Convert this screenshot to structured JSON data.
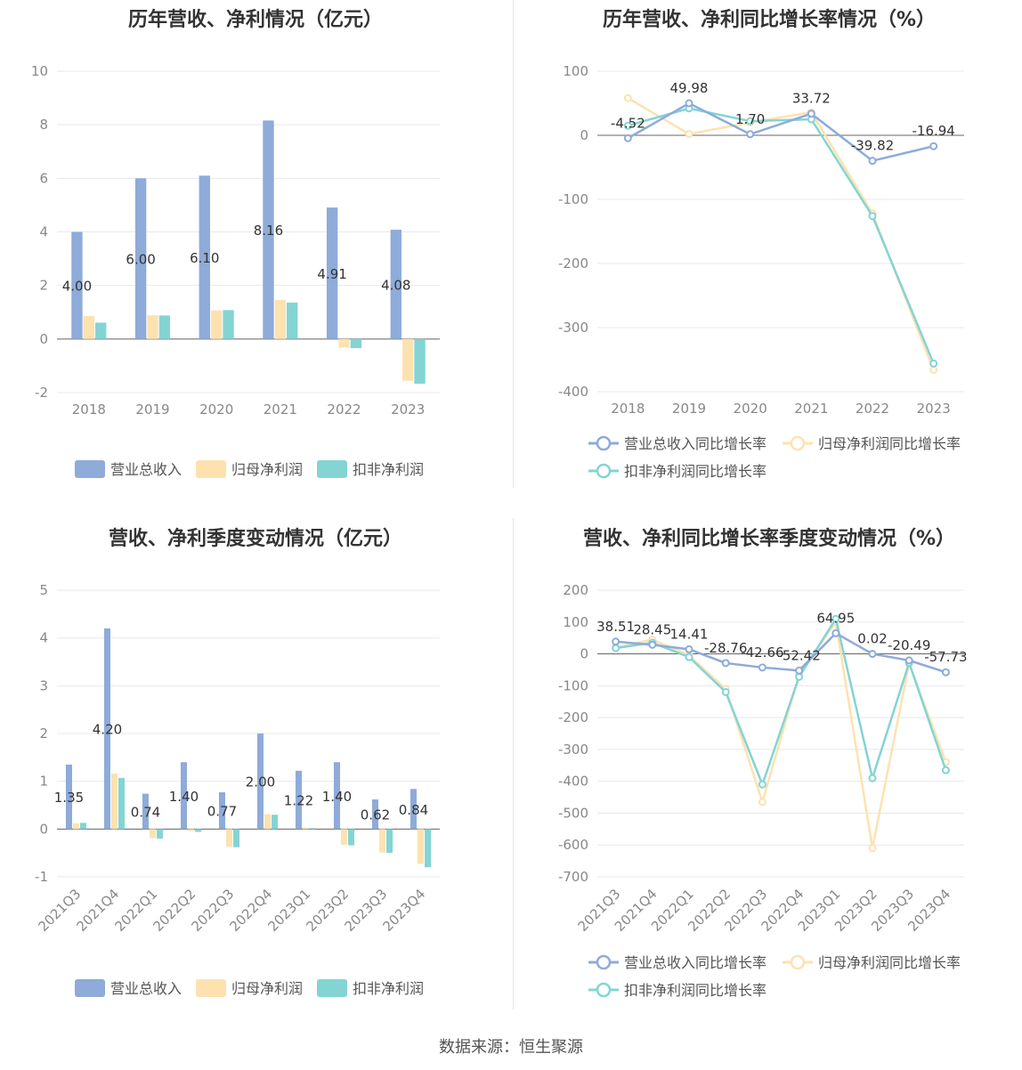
{
  "footer": {
    "source": "数据来源：恒生聚源"
  },
  "colors": {
    "revenue": "#8eabd9",
    "net_profit": "#fde2b0",
    "deducted_profit": "#84d4d4",
    "grid": "#e8e8ee",
    "axis": "#666666"
  },
  "chart_data": [
    {
      "id": "annual-bar",
      "type": "bar",
      "title": "历年营收、净利情况（亿元）",
      "categories": [
        "2018",
        "2019",
        "2020",
        "2021",
        "2022",
        "2023"
      ],
      "ylim": [
        -2,
        10
      ],
      "yticks": [
        -2,
        0,
        2,
        4,
        6,
        8,
        10
      ],
      "series": [
        {
          "name": "营业总收入",
          "values": [
            4.0,
            6.0,
            6.1,
            8.16,
            4.91,
            4.08
          ],
          "labels": [
            "4.00",
            "6.00",
            "6.10",
            "8.16",
            "4.91",
            "4.08"
          ]
        },
        {
          "name": "归母净利润",
          "values": [
            0.86,
            0.89,
            1.07,
            1.46,
            -0.32,
            -1.56
          ]
        },
        {
          "name": "扣非净利润",
          "values": [
            0.61,
            0.88,
            1.08,
            1.36,
            -0.34,
            -1.67
          ]
        }
      ],
      "legend": "bottom"
    },
    {
      "id": "annual-growth",
      "type": "line",
      "title": "历年营收、净利同比增长率情况（%）",
      "categories": [
        "2018",
        "2019",
        "2020",
        "2021",
        "2022",
        "2023"
      ],
      "ylim": [
        -400,
        100
      ],
      "yticks": [
        -400,
        -300,
        -200,
        -100,
        0,
        100
      ],
      "series": [
        {
          "name": "营业总收入同比增长率",
          "values": [
            -4.52,
            49.98,
            1.7,
            33.72,
            -39.82,
            -16.94
          ],
          "labels": [
            "-4.52",
            "49.98",
            "1.70",
            "33.72",
            "-39.82",
            "-16.94"
          ]
        },
        {
          "name": "归母净利润同比增长率",
          "values": [
            58,
            2,
            20,
            36,
            -122,
            -366
          ]
        },
        {
          "name": "扣非净利润同比增长率",
          "values": [
            15,
            42,
            22,
            25,
            -126,
            -356
          ]
        }
      ],
      "legend": "bottom"
    },
    {
      "id": "quarter-bar",
      "type": "bar",
      "title": "营收、净利季度变动情况（亿元）",
      "categories": [
        "2021Q3",
        "2021Q4",
        "2022Q1",
        "2022Q2",
        "2022Q3",
        "2022Q4",
        "2023Q1",
        "2023Q2",
        "2023Q3",
        "2023Q4"
      ],
      "ylim": [
        -1,
        5
      ],
      "yticks": [
        -1,
        0,
        1,
        2,
        3,
        4,
        5
      ],
      "series": [
        {
          "name": "营业总收入",
          "values": [
            1.35,
            4.2,
            0.74,
            1.4,
            0.77,
            2.0,
            1.22,
            1.4,
            0.62,
            0.84
          ],
          "labels": [
            "1.35",
            "4.20",
            "0.74",
            "1.40",
            "0.77",
            "2.00",
            "1.22",
            "1.40",
            "0.62",
            "0.84"
          ]
        },
        {
          "name": "归母净利润",
          "values": [
            0.12,
            1.16,
            -0.19,
            -0.04,
            -0.37,
            0.31,
            0.03,
            -0.33,
            -0.49,
            -0.73
          ]
        },
        {
          "name": "扣非净利润",
          "values": [
            0.13,
            1.07,
            -0.2,
            -0.06,
            -0.38,
            0.3,
            0.02,
            -0.34,
            -0.5,
            -0.8
          ]
        }
      ],
      "legend": "bottom"
    },
    {
      "id": "quarter-growth",
      "type": "line",
      "title": "营收、净利同比增长率季度变动情况（%）",
      "categories": [
        "2021Q3",
        "2021Q4",
        "2022Q1",
        "2022Q2",
        "2022Q3",
        "2022Q4",
        "2023Q1",
        "2023Q2",
        "2023Q3",
        "2023Q4"
      ],
      "ylim": [
        -700,
        200
      ],
      "yticks": [
        -700,
        -600,
        -500,
        -400,
        -300,
        -200,
        -100,
        0,
        100,
        200
      ],
      "series": [
        {
          "name": "营业总收入同比增长率",
          "values": [
            38.51,
            28.45,
            14.41,
            -28.76,
            -42.66,
            -52.42,
            64.95,
            0.02,
            -20.49,
            -57.73
          ],
          "labels": [
            "38.51",
            "28.45",
            "14.41",
            "-28.76",
            "-42.66",
            "-52.42",
            "64.95",
            "0.02",
            "-20.49",
            "-57.73"
          ]
        },
        {
          "name": "归母净利润同比增长率",
          "values": [
            20,
            45,
            -5,
            -110,
            -465,
            -65,
            100,
            -610,
            -30,
            -340
          ]
        },
        {
          "name": "扣非净利润同比增长率",
          "values": [
            18,
            35,
            -10,
            -120,
            -410,
            -72,
            110,
            -390,
            -28,
            -365
          ]
        }
      ],
      "legend": "bottom"
    }
  ]
}
